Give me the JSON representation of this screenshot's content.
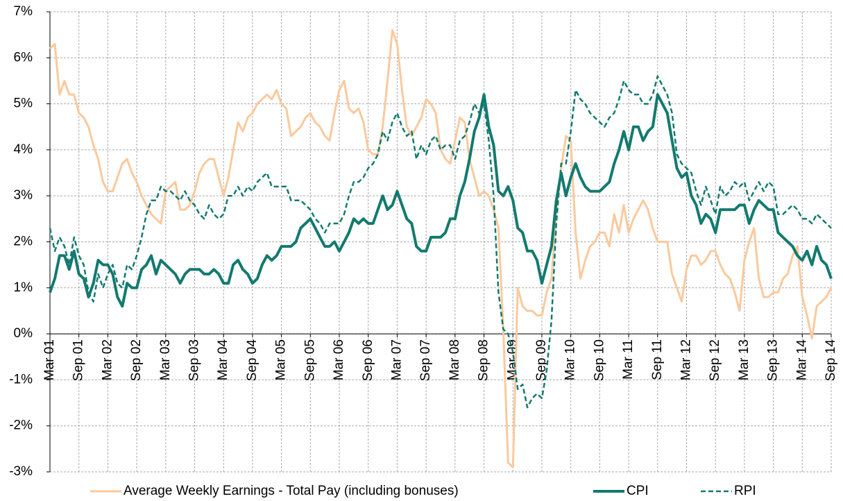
{
  "chart_data": {
    "type": "line",
    "categories": [
      "Mar 01",
      null,
      null,
      null,
      null,
      null,
      "Sep 01",
      null,
      null,
      null,
      null,
      null,
      "Mar 02",
      null,
      null,
      null,
      null,
      null,
      "Sep 02",
      null,
      null,
      null,
      null,
      null,
      "Mar 03",
      null,
      null,
      null,
      null,
      null,
      "Sep 03",
      null,
      null,
      null,
      null,
      null,
      "Mar 04",
      null,
      null,
      null,
      null,
      null,
      "Sep 04",
      null,
      null,
      null,
      null,
      null,
      "Mar 05",
      null,
      null,
      null,
      null,
      null,
      "Sep 05",
      null,
      null,
      null,
      null,
      null,
      "Mar 06",
      null,
      null,
      null,
      null,
      null,
      "Sep 06",
      null,
      null,
      null,
      null,
      null,
      "Mar 07",
      null,
      null,
      null,
      null,
      null,
      "Sep 07",
      null,
      null,
      null,
      null,
      null,
      "Mar 08",
      null,
      null,
      null,
      null,
      null,
      "Sep 08",
      null,
      null,
      null,
      null,
      null,
      "Mar 09",
      null,
      null,
      null,
      null,
      null,
      "Sep 09",
      null,
      null,
      null,
      null,
      null,
      "Mar 10",
      null,
      null,
      null,
      null,
      null,
      "Sep 10",
      null,
      null,
      null,
      null,
      null,
      "Mar 11",
      null,
      null,
      null,
      null,
      null,
      "Sep 11",
      null,
      null,
      null,
      null,
      null,
      "Mar 12",
      null,
      null,
      null,
      null,
      null,
      "Sep 12",
      null,
      null,
      null,
      null,
      null,
      "Mar 13",
      null,
      null,
      null,
      null,
      null,
      "Sep 13",
      null,
      null,
      null,
      null,
      null,
      "Mar 14",
      null,
      null,
      null,
      null,
      null,
      "Sep 14"
    ],
    "series": [
      {
        "name": "Average Weekly Earnings - Total Pay (including bonuses)",
        "color": "#fac99c",
        "dashed": false,
        "values": [
          6.2,
          6.3,
          5.2,
          5.5,
          5.2,
          5.2,
          4.8,
          4.7,
          4.5,
          4.1,
          3.8,
          3.3,
          3.1,
          3.1,
          3.4,
          3.7,
          3.8,
          3.5,
          3.3,
          3.0,
          2.8,
          2.6,
          2.5,
          2.4,
          3.1,
          3.2,
          3.3,
          2.7,
          2.7,
          2.8,
          3.1,
          3.5,
          3.7,
          3.8,
          3.8,
          3.4,
          3.0,
          3.4,
          4.0,
          4.6,
          4.4,
          4.7,
          4.8,
          5.0,
          5.1,
          5.2,
          5.1,
          5.3,
          5.0,
          4.9,
          4.3,
          4.4,
          4.5,
          4.7,
          4.8,
          4.6,
          4.5,
          4.3,
          4.2,
          4.8,
          5.3,
          5.5,
          4.9,
          4.8,
          4.9,
          4.6,
          4.0,
          3.9,
          3.9,
          4.5,
          5.5,
          6.6,
          6.3,
          5.3,
          4.5,
          4.3,
          4.5,
          4.7,
          5.1,
          5.0,
          4.8,
          4.0,
          3.8,
          3.7,
          4.2,
          4.7,
          4.6,
          3.8,
          3.4,
          3.0,
          3.1,
          3.0,
          2.7,
          2.3,
          0.1,
          -2.8,
          -2.9,
          1.0,
          0.6,
          0.5,
          0.5,
          0.4,
          0.4,
          0.9,
          1.2,
          2.6,
          3.6,
          4.3,
          4.2,
          2.2,
          1.2,
          1.6,
          1.9,
          2.0,
          2.2,
          2.2,
          1.9,
          2.6,
          2.2,
          2.8,
          2.2,
          2.5,
          2.7,
          2.9,
          2.7,
          2.3,
          2.0,
          2.0,
          2.0,
          1.3,
          1.0,
          0.7,
          1.4,
          1.7,
          1.7,
          1.5,
          1.6,
          1.8,
          1.8,
          1.5,
          1.3,
          1.2,
          0.9,
          0.5,
          1.6,
          2.0,
          2.3,
          1.2,
          0.8,
          0.8,
          0.9,
          0.9,
          1.2,
          1.3,
          1.7,
          1.9,
          0.8,
          0.4,
          -0.1,
          0.6,
          0.7,
          0.8,
          1.0
        ]
      },
      {
        "name": "CPI",
        "color": "#127a6e",
        "dashed": false,
        "values": [
          0.9,
          1.2,
          1.7,
          1.7,
          1.4,
          1.8,
          1.3,
          1.2,
          0.8,
          1.1,
          1.6,
          1.5,
          1.5,
          1.3,
          0.8,
          0.6,
          1.1,
          1.0,
          1.0,
          1.4,
          1.5,
          1.7,
          1.3,
          1.6,
          1.5,
          1.4,
          1.3,
          1.1,
          1.3,
          1.4,
          1.4,
          1.4,
          1.3,
          1.3,
          1.4,
          1.3,
          1.1,
          1.1,
          1.5,
          1.6,
          1.4,
          1.3,
          1.1,
          1.2,
          1.5,
          1.7,
          1.6,
          1.7,
          1.9,
          1.9,
          1.9,
          2.0,
          2.3,
          2.4,
          2.5,
          2.3,
          2.1,
          1.9,
          1.9,
          2.0,
          1.8,
          2.0,
          2.2,
          2.5,
          2.4,
          2.5,
          2.4,
          2.4,
          2.7,
          3.0,
          2.7,
          2.8,
          3.1,
          2.8,
          2.5,
          2.4,
          1.9,
          1.8,
          1.8,
          2.1,
          2.1,
          2.1,
          2.2,
          2.5,
          2.5,
          3.0,
          3.3,
          3.8,
          4.4,
          4.7,
          5.2,
          4.5,
          4.1,
          3.1,
          3.0,
          3.2,
          2.9,
          2.3,
          2.2,
          1.8,
          1.8,
          1.6,
          1.1,
          1.5,
          1.9,
          2.9,
          3.5,
          3.0,
          3.4,
          3.7,
          3.4,
          3.2,
          3.1,
          3.1,
          3.1,
          3.2,
          3.3,
          3.7,
          4.0,
          4.4,
          4.0,
          4.5,
          4.5,
          4.2,
          4.4,
          4.5,
          5.2,
          5.0,
          4.8,
          4.2,
          3.6,
          3.4,
          3.5,
          3.0,
          2.8,
          2.4,
          2.6,
          2.5,
          2.2,
          2.7,
          2.7,
          2.7,
          2.7,
          2.8,
          2.8,
          2.4,
          2.7,
          2.9,
          2.8,
          2.7,
          2.7,
          2.2,
          2.1,
          2.0,
          1.9,
          1.7,
          1.6,
          1.8,
          1.5,
          1.9,
          1.6,
          1.5,
          1.2
        ]
      },
      {
        "name": "RPI",
        "color": "#127a6e",
        "dashed": true,
        "values": [
          2.3,
          1.8,
          2.1,
          1.9,
          1.5,
          2.1,
          1.7,
          1.5,
          0.9,
          0.7,
          1.3,
          1.0,
          1.3,
          1.5,
          1.1,
          1.0,
          1.5,
          1.4,
          1.7,
          2.1,
          2.6,
          2.9,
          2.9,
          3.2,
          3.1,
          3.1,
          3.0,
          2.9,
          3.1,
          2.9,
          2.8,
          2.6,
          2.5,
          2.8,
          2.6,
          2.5,
          2.6,
          3.0,
          3.0,
          3.2,
          3.0,
          3.2,
          3.1,
          3.3,
          3.4,
          3.5,
          3.2,
          3.2,
          3.2,
          3.2,
          2.9,
          2.9,
          2.9,
          2.8,
          2.7,
          2.5,
          2.4,
          2.2,
          2.4,
          2.4,
          2.4,
          2.6,
          3.0,
          3.3,
          3.3,
          3.4,
          3.6,
          3.7,
          3.9,
          4.4,
          4.2,
          4.6,
          4.8,
          4.5,
          4.3,
          4.4,
          3.8,
          4.1,
          3.9,
          4.2,
          4.3,
          4.0,
          4.1,
          4.1,
          3.8,
          4.2,
          4.3,
          4.6,
          5.0,
          4.8,
          5.0,
          4.2,
          3.0,
          0.9,
          0.1,
          0.0,
          -0.4,
          -1.2,
          -1.1,
          -1.6,
          -1.4,
          -1.3,
          -1.4,
          -0.8,
          0.3,
          2.4,
          3.7,
          3.7,
          4.4,
          5.3,
          5.1,
          5.0,
          4.8,
          4.7,
          4.6,
          4.5,
          4.7,
          4.8,
          5.1,
          5.5,
          5.3,
          5.2,
          5.2,
          5.0,
          5.0,
          5.2,
          5.6,
          5.4,
          5.2,
          4.8,
          3.9,
          3.7,
          3.6,
          3.5,
          3.1,
          2.8,
          3.2,
          2.9,
          2.6,
          3.2,
          3.0,
          3.1,
          3.3,
          3.2,
          3.3,
          2.9,
          3.1,
          3.3,
          3.1,
          3.3,
          3.2,
          2.6,
          2.6,
          2.7,
          2.8,
          2.7,
          2.5,
          2.5,
          2.4,
          2.6,
          2.5,
          2.4,
          2.3
        ]
      }
    ],
    "ylim": [
      -3,
      7
    ],
    "yticks": [
      {
        "value": -3,
        "label": "-3%"
      },
      {
        "value": -2,
        "label": "-2%"
      },
      {
        "value": -1,
        "label": "-1%"
      },
      {
        "value": 0,
        "label": "0%"
      },
      {
        "value": 1,
        "label": "1%"
      },
      {
        "value": 2,
        "label": "2%"
      },
      {
        "value": 3,
        "label": "3%"
      },
      {
        "value": 4,
        "label": "4%"
      },
      {
        "value": 5,
        "label": "5%"
      },
      {
        "value": 6,
        "label": "6%"
      },
      {
        "value": 7,
        "label": "7%"
      }
    ],
    "grid": true,
    "legend": "bottom"
  }
}
